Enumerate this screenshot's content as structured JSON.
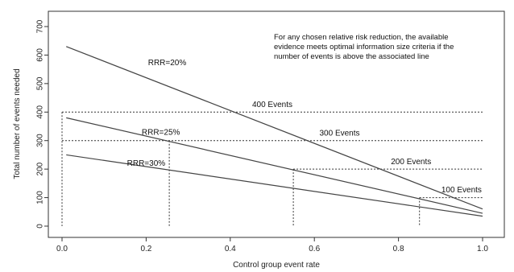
{
  "chart_data": {
    "type": "line",
    "xlabel": "Control group event rate",
    "ylabel": "Total number of events needed",
    "xlim": [
      0.0,
      1.0
    ],
    "ylim": [
      -25,
      720
    ],
    "xticks": [
      0.0,
      0.2,
      0.4,
      0.6,
      0.8,
      1.0
    ],
    "xtick_labels": [
      "0.0",
      "0.2",
      "0.4",
      "0.6",
      "0.8",
      "1.0"
    ],
    "yticks": [
      0,
      100,
      200,
      300,
      400,
      500,
      600,
      700
    ],
    "ytick_labels": [
      "0",
      "100",
      "200",
      "300",
      "400",
      "500",
      "600",
      "700"
    ],
    "grid": false,
    "series": [
      {
        "name": "RRR=20%",
        "x": [
          0.01,
          1.0
        ],
        "y": [
          630,
          60
        ],
        "label_at": [
          0.25,
          565
        ]
      },
      {
        "name": "RRR=25%",
        "x": [
          0.01,
          1.0
        ],
        "y": [
          380,
          45
        ],
        "label_at": [
          0.235,
          320
        ]
      },
      {
        "name": "RRR=30%",
        "x": [
          0.01,
          1.0
        ],
        "y": [
          250,
          35
        ],
        "label_at": [
          0.2,
          212
        ]
      }
    ],
    "event_thresholds": [
      {
        "label": "400 Events",
        "y": 400,
        "x_from": 0.0,
        "drop_x": 0.0,
        "label_at": [
          0.5,
          418
        ]
      },
      {
        "label": "300 Events",
        "y": 300,
        "x_from": 0.0,
        "drop_x": 0.255,
        "label_at": [
          0.66,
          318
        ]
      },
      {
        "label": "200 Events",
        "y": 200,
        "x_from": 0.55,
        "drop_x": 0.55,
        "label_at": [
          0.83,
          218
        ]
      },
      {
        "label": "100 Events",
        "y": 100,
        "x_from": 0.85,
        "drop_x": 0.85,
        "label_at": [
          0.95,
          118
        ]
      }
    ],
    "annotation": [
      "For any chosen relative risk reduction, the available",
      "evidence meets optimal information size criteria if the",
      "number of events is above the associated line"
    ]
  }
}
